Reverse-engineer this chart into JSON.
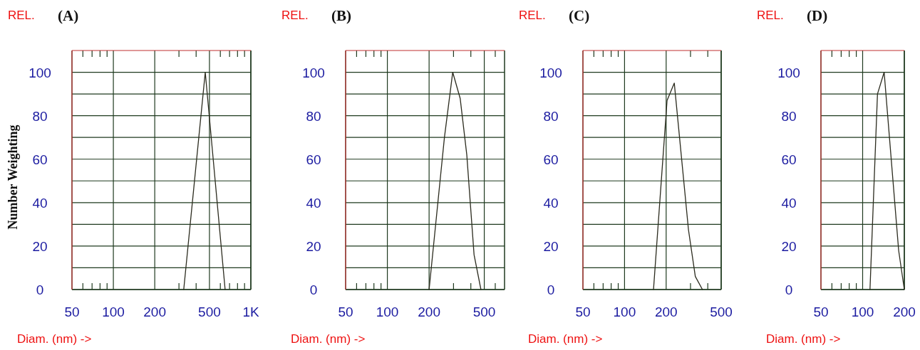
{
  "chart_data": [
    {
      "type": "line",
      "title": "(A)",
      "ylabel": "Number Weighting",
      "xlabel": "Diam. (nm) ->",
      "annotations": [
        "REL."
      ],
      "log": "x",
      "grid": true,
      "xlim": [
        50,
        1000
      ],
      "xticks": [
        50,
        {
          "value": 60,
          "label": null
        },
        {
          "value": 70,
          "label": null
        },
        {
          "value": 80,
          "label": null
        },
        {
          "value": 90,
          "label": null
        },
        100,
        200,
        {
          "value": 300,
          "label": null
        },
        {
          "value": 400,
          "label": null
        },
        500,
        {
          "value": 600,
          "label": null
        },
        {
          "value": 700,
          "label": null
        },
        {
          "value": 800,
          "label": null
        },
        {
          "value": 900,
          "label": null
        },
        {
          "value": 1000,
          "label": "1K"
        }
      ],
      "ylim": [
        0,
        110
      ],
      "yticks": [
        0,
        {
          "value": 10,
          "label": null
        },
        20,
        {
          "value": 30,
          "label": null
        },
        40,
        {
          "value": 50,
          "label": null
        },
        60,
        {
          "value": 70,
          "label": null
        },
        80,
        {
          "value": 90,
          "label": null
        },
        100
      ],
      "series": [
        {
          "color": "#2b2b1e",
          "x": [
            325,
            466,
            650
          ],
          "values": [
            0,
            100,
            0
          ]
        }
      ]
    },
    {
      "type": "line",
      "title": "(B)",
      "xlabel": "Diam. (nm) ->",
      "annotations": [
        "REL."
      ],
      "log": "x",
      "grid": true,
      "xlim": [
        50,
        700
      ],
      "xticks": [
        50,
        {
          "value": 60,
          "label": null
        },
        {
          "value": 70,
          "label": null
        },
        {
          "value": 80,
          "label": null
        },
        {
          "value": 90,
          "label": null
        },
        100,
        200,
        {
          "value": 300,
          "label": null
        },
        {
          "value": 400,
          "label": null
        },
        500,
        {
          "value": 600,
          "label": null
        }
      ],
      "ylim": [
        0,
        110
      ],
      "yticks": [
        0,
        {
          "value": 10,
          "label": null
        },
        20,
        {
          "value": 30,
          "label": null
        },
        40,
        {
          "value": 50,
          "label": null
        },
        60,
        {
          "value": 70,
          "label": null
        },
        80,
        {
          "value": 90,
          "label": null
        },
        100
      ],
      "series": [
        {
          "color": "#2b2b1e",
          "x": [
            200,
            258,
            296,
            335,
            374,
            422,
            473
          ],
          "values": [
            0,
            70,
            100,
            88,
            62,
            16,
            0
          ]
        }
      ]
    },
    {
      "type": "line",
      "title": "(C)",
      "xlabel": "Diam. (nm) ->",
      "annotations": [
        "REL."
      ],
      "log": "x",
      "grid": true,
      "xlim": [
        50,
        500
      ],
      "xticks": [
        50,
        {
          "value": 60,
          "label": null
        },
        {
          "value": 70,
          "label": null
        },
        {
          "value": 80,
          "label": null
        },
        {
          "value": 90,
          "label": null
        },
        100,
        200,
        {
          "value": 300,
          "label": null
        },
        {
          "value": 400,
          "label": null
        },
        500
      ],
      "ylim": [
        0,
        110
      ],
      "yticks": [
        0,
        {
          "value": 10,
          "label": null
        },
        20,
        {
          "value": 30,
          "label": null
        },
        40,
        {
          "value": 50,
          "label": null
        },
        60,
        {
          "value": 70,
          "label": null
        },
        80,
        {
          "value": 90,
          "label": null
        },
        100
      ],
      "series": [
        {
          "color": "#2b2b1e",
          "x": [
            162,
            203,
            229,
            290,
            325,
            366
          ],
          "values": [
            0,
            87,
            95,
            27.5,
            6,
            0
          ]
        }
      ]
    },
    {
      "type": "line",
      "title": "(D)",
      "xlabel": "Diam. (nm) ->",
      "annotations": [
        "REL."
      ],
      "log": "x",
      "grid": true,
      "xlim": [
        50,
        200
      ],
      "xticks": [
        50,
        {
          "value": 60,
          "label": null
        },
        {
          "value": 70,
          "label": null
        },
        {
          "value": 80,
          "label": null
        },
        {
          "value": 90,
          "label": null
        },
        100,
        200
      ],
      "ylim": [
        0,
        110
      ],
      "yticks": [
        0,
        {
          "value": 10,
          "label": null
        },
        20,
        {
          "value": 30,
          "label": null
        },
        40,
        {
          "value": 50,
          "label": null
        },
        60,
        {
          "value": 70,
          "label": null
        },
        80,
        {
          "value": 90,
          "label": null
        },
        100
      ],
      "series": [
        {
          "color": "#2b2b1e",
          "x": [
            113,
            128,
            143,
            182,
            200
          ],
          "values": [
            0,
            90,
            100,
            18,
            0
          ]
        }
      ]
    }
  ]
}
